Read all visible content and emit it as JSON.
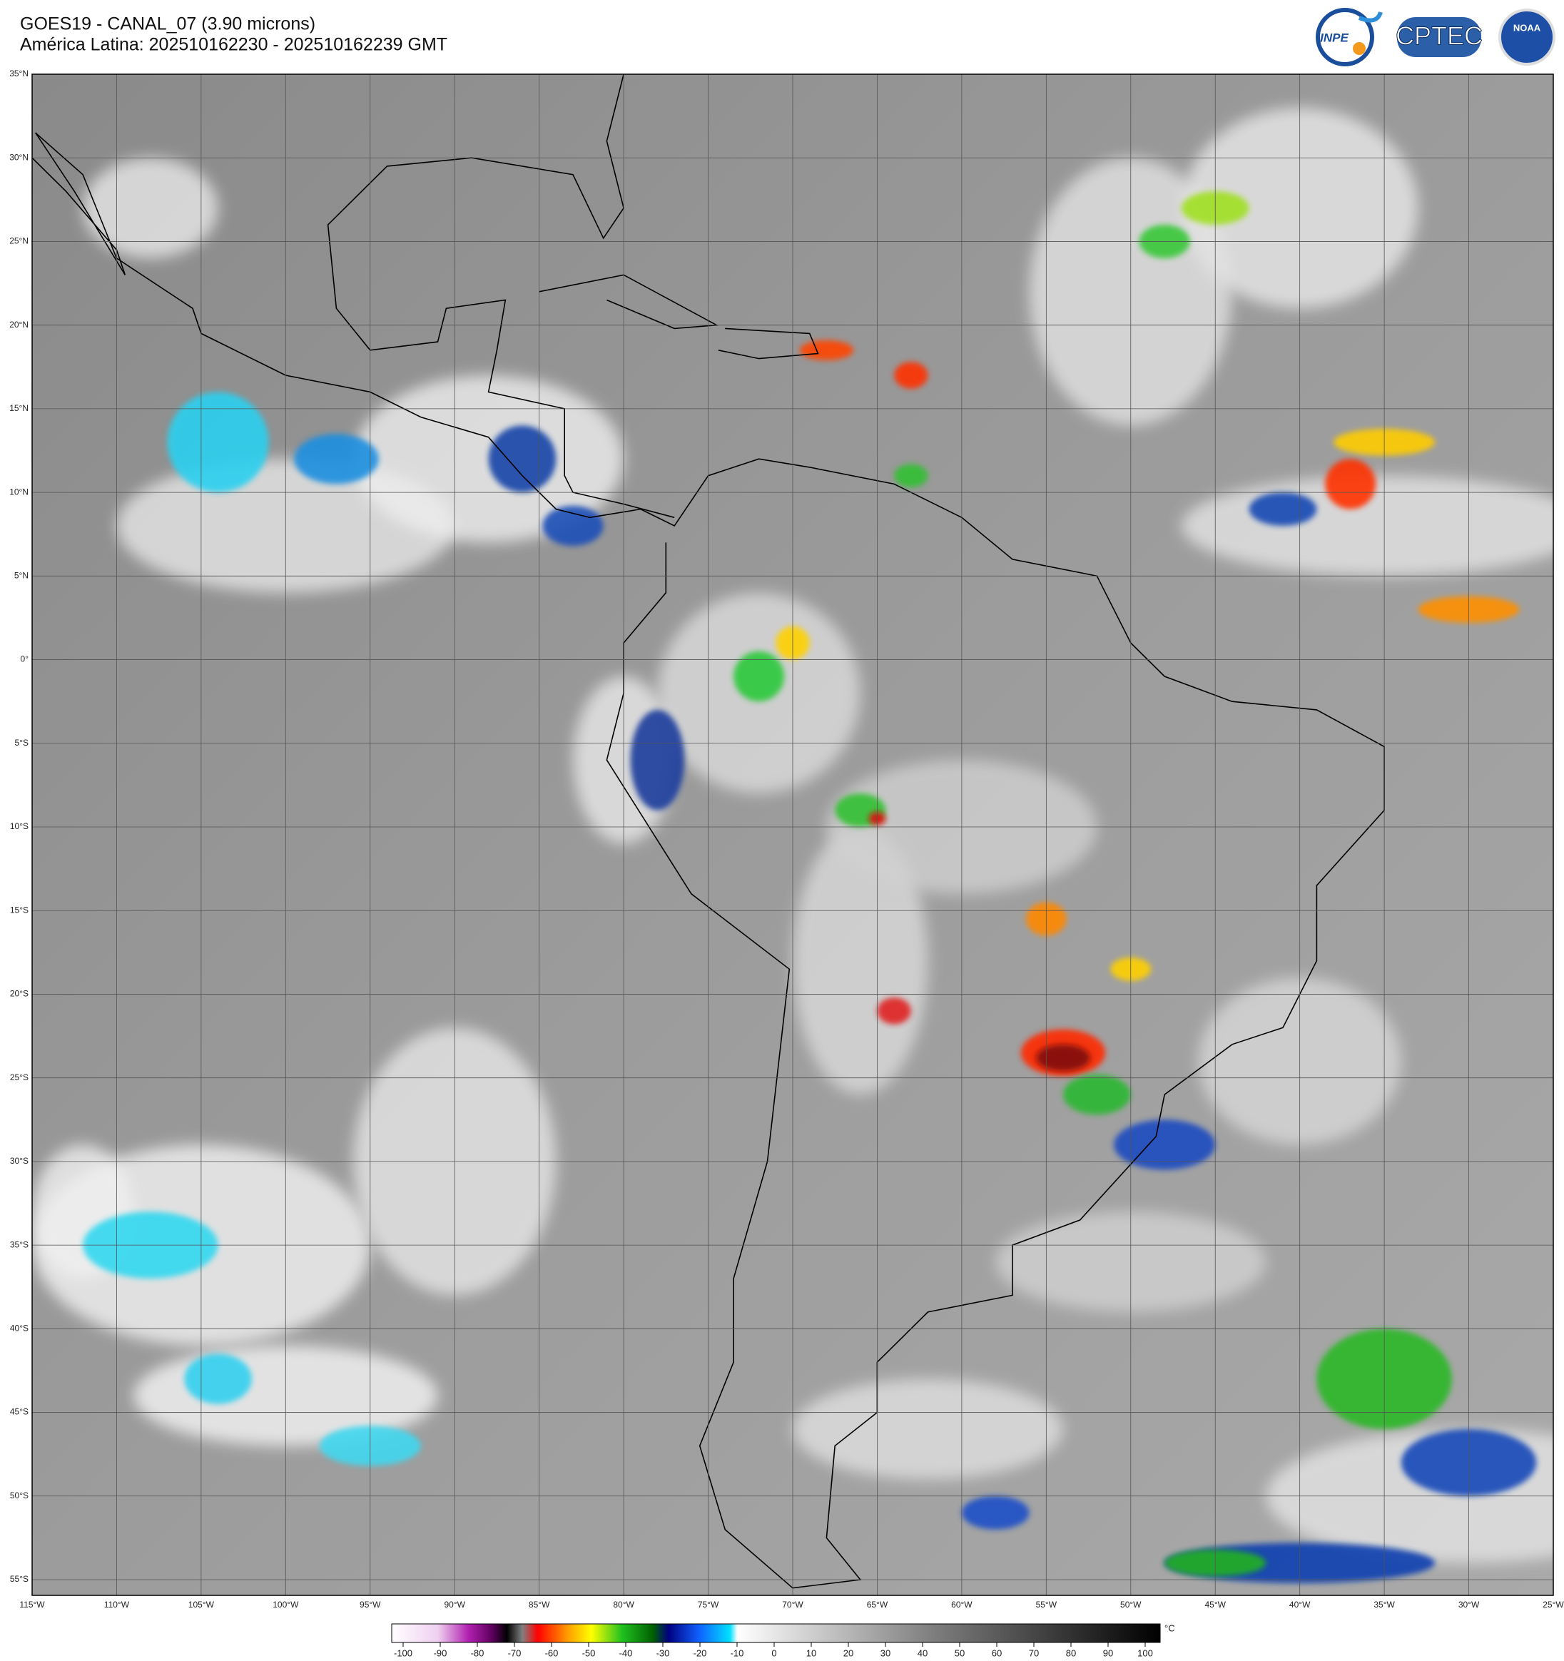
{
  "header": {
    "line1": "GOES19 - CANAL_07 (3.90 microns)",
    "line2": "América Latina: 202510162230 - 202510162239 GMT"
  },
  "logos": [
    "INPE",
    "CPTEC",
    "NOAA"
  ],
  "map": {
    "lon_ticks": [
      {
        "value": -115,
        "label": "115°W"
      },
      {
        "value": -110,
        "label": "110°W"
      },
      {
        "value": -105,
        "label": "105°W"
      },
      {
        "value": -100,
        "label": "100°W"
      },
      {
        "value": -95,
        "label": "95°W"
      },
      {
        "value": -90,
        "label": "90°W"
      },
      {
        "value": -85,
        "label": "85°W"
      },
      {
        "value": -80,
        "label": "80°W"
      },
      {
        "value": -75,
        "label": "75°W"
      },
      {
        "value": -70,
        "label": "70°W"
      },
      {
        "value": -65,
        "label": "65°W"
      },
      {
        "value": -60,
        "label": "60°W"
      },
      {
        "value": -55,
        "label": "55°W"
      },
      {
        "value": -50,
        "label": "50°W"
      },
      {
        "value": -45,
        "label": "45°W"
      },
      {
        "value": -40,
        "label": "40°W"
      },
      {
        "value": -35,
        "label": "35°W"
      },
      {
        "value": -30,
        "label": "30°W"
      },
      {
        "value": -25,
        "label": "25°W"
      }
    ],
    "lat_ticks": [
      {
        "value": 35,
        "label": "35°N"
      },
      {
        "value": 30,
        "label": "30°N"
      },
      {
        "value": 25,
        "label": "25°N"
      },
      {
        "value": 20,
        "label": "20°N"
      },
      {
        "value": 15,
        "label": "15°N"
      },
      {
        "value": 10,
        "label": "10°N"
      },
      {
        "value": 5,
        "label": "5°N"
      },
      {
        "value": 0,
        "label": "0°"
      },
      {
        "value": -5,
        "label": "5°S"
      },
      {
        "value": -10,
        "label": "10°S"
      },
      {
        "value": -15,
        "label": "15°S"
      },
      {
        "value": -20,
        "label": "20°S"
      },
      {
        "value": -25,
        "label": "25°S"
      },
      {
        "value": -30,
        "label": "30°S"
      },
      {
        "value": -35,
        "label": "35°S"
      },
      {
        "value": -40,
        "label": "40°S"
      },
      {
        "value": -45,
        "label": "45°S"
      },
      {
        "value": -50,
        "label": "50°S"
      },
      {
        "value": -55,
        "label": "55°S"
      }
    ]
  },
  "colorbar": {
    "ticks": [
      -100,
      -90,
      -80,
      -70,
      -60,
      -50,
      -40,
      -30,
      -20,
      -10,
      0,
      10,
      20,
      30,
      40,
      50,
      60,
      70,
      80,
      90,
      100
    ],
    "unit": "°C"
  }
}
